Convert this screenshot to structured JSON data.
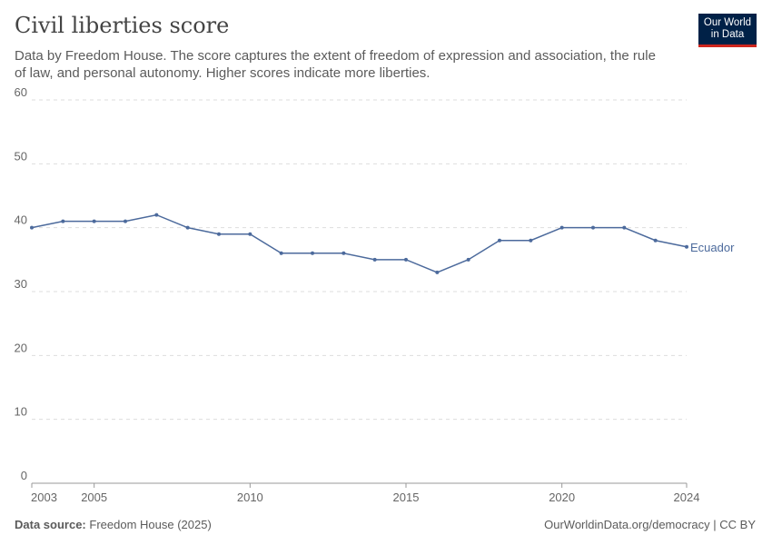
{
  "header": {
    "title": "Civil liberties score",
    "subtitle": "Data by Freedom House. The score captures the extent of freedom of expression and association, the rule of law, and personal autonomy. Higher scores indicate more liberties.",
    "logo": "Our World in Data"
  },
  "footer": {
    "source_label": "Data source:",
    "source": "Freedom House (2025)",
    "url": "OurWorldinData.org/democracy | CC BY"
  },
  "chart_data": {
    "type": "line",
    "title": "Civil liberties score",
    "ylim": [
      0,
      60
    ],
    "yticks": [
      0,
      10,
      20,
      30,
      40,
      50,
      60
    ],
    "xticks": [
      2003,
      2005,
      2010,
      2015,
      2020,
      2024
    ],
    "grid": "horizontal dashed",
    "legend": "end-of-line label",
    "series": [
      {
        "name": "Ecuador",
        "color": "#4c6a9c",
        "x": [
          2003,
          2004,
          2005,
          2006,
          2007,
          2008,
          2009,
          2010,
          2011,
          2012,
          2013,
          2014,
          2015,
          2016,
          2017,
          2018,
          2019,
          2020,
          2021,
          2022,
          2023,
          2024
        ],
        "y": [
          40,
          41,
          41,
          41,
          42,
          40,
          39,
          39,
          36,
          36,
          36,
          35,
          35,
          33,
          35,
          38,
          38,
          40,
          40,
          40,
          38,
          37
        ]
      }
    ]
  }
}
